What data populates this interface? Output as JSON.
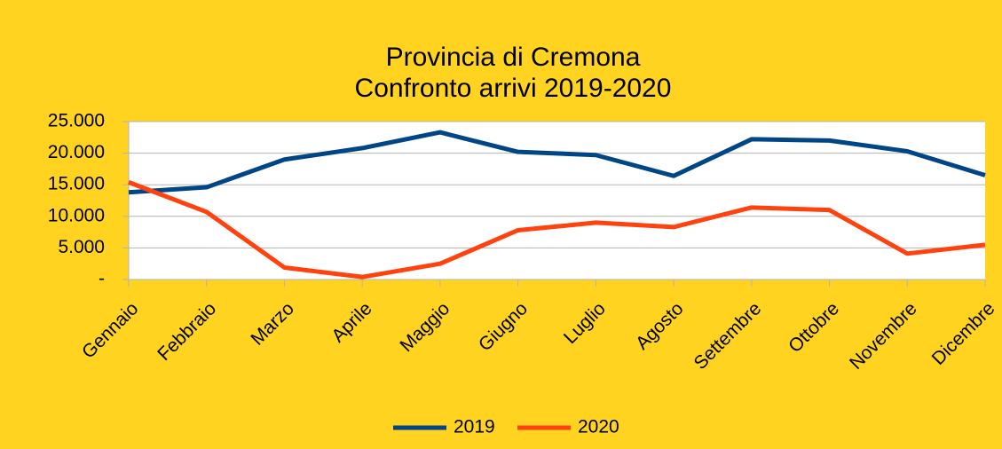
{
  "chart_data": {
    "type": "line",
    "title": "Provincia di Cremona",
    "subtitle": "Confronto arrivi 2019-2020",
    "categories": [
      "Gennaio",
      "Febbraio",
      "Marzo",
      "Aprile",
      "Maggio",
      "Giugno",
      "Luglio",
      "Agosto",
      "Settembre",
      "Ottobre",
      "Novembre",
      "Dicembre"
    ],
    "series": [
      {
        "name": "2019",
        "color": "#004586",
        "values": [
          13800,
          14600,
          19000,
          20800,
          23300,
          20200,
          19700,
          16400,
          22200,
          22000,
          20300,
          16500
        ]
      },
      {
        "name": "2020",
        "color": "#ff420e",
        "values": [
          15400,
          10700,
          1900,
          400,
          2500,
          7800,
          9000,
          8300,
          11400,
          11000,
          4100,
          5500
        ]
      }
    ],
    "ylim": [
      0,
      25000
    ],
    "yticks": [
      {
        "value": 0,
        "label": "-"
      },
      {
        "value": 5000,
        "label": "5.000"
      },
      {
        "value": 10000,
        "label": "10.000"
      },
      {
        "value": 15000,
        "label": "15.000"
      },
      {
        "value": 20000,
        "label": "20.000"
      },
      {
        "value": 25000,
        "label": "25.000"
      }
    ],
    "grid": true,
    "legend": "bottom"
  }
}
